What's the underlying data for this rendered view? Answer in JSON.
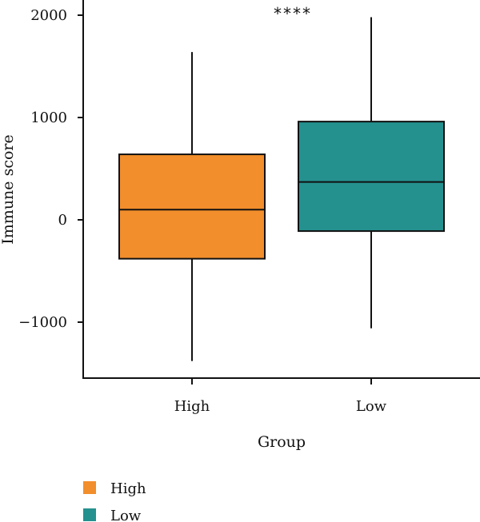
{
  "chart_data": {
    "type": "box",
    "xlabel": "Group",
    "ylabel": "Immune score",
    "categories": [
      "High",
      "Low"
    ],
    "ylim": [
      -1550,
      2000
    ],
    "yticks": [
      2000,
      1000,
      0,
      -1000
    ],
    "yticklabels": [
      "2000",
      "1000",
      "0",
      "−1000"
    ],
    "significance": "****",
    "grid": false,
    "legend_position": "bottom-left",
    "series": [
      {
        "name": "High",
        "color": "#F28E2B",
        "whisker_low": -1380,
        "q1": -380,
        "median": 100,
        "q3": 640,
        "whisker_high": 1640
      },
      {
        "name": "Low",
        "color": "#24918F",
        "whisker_low": -1060,
        "q1": -110,
        "median": 370,
        "q3": 960,
        "whisker_high": 1980
      }
    ]
  },
  "legend": [
    {
      "label": "High",
      "color": "#F28E2B"
    },
    {
      "label": "Low",
      "color": "#24918F"
    }
  ]
}
